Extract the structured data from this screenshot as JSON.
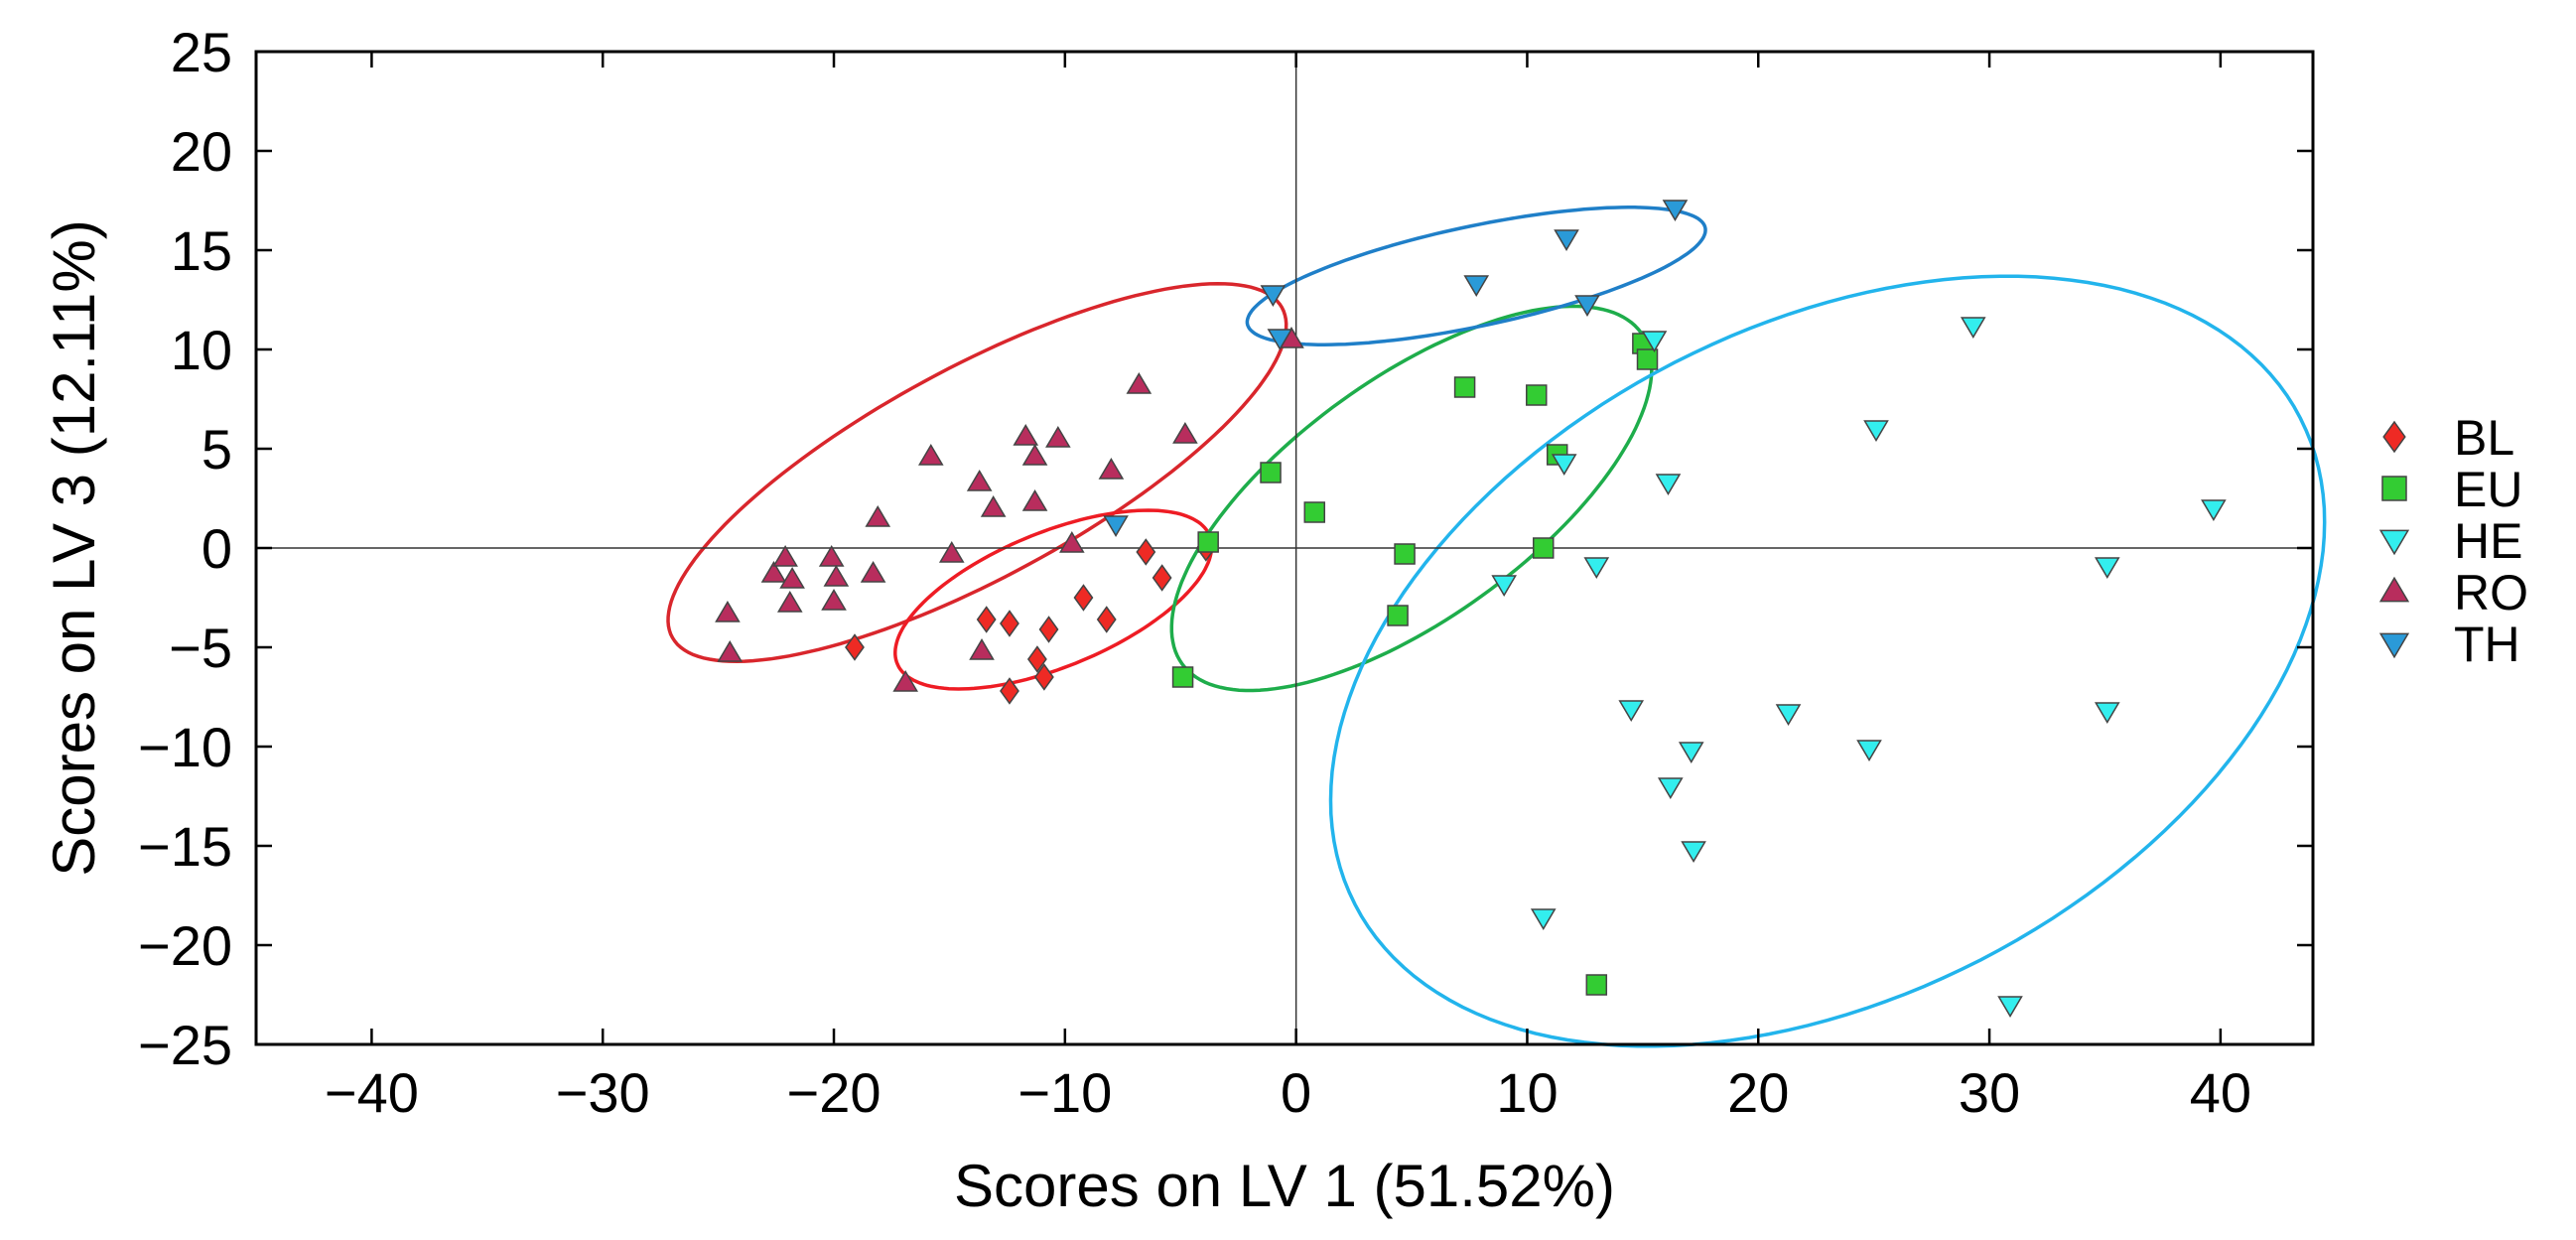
{
  "chart_data": {
    "type": "scatter",
    "xlabel": "Scores on LV 1 (51.52%)",
    "ylabel": "Scores on LV 3 (12.11%)",
    "xlim": [
      -45,
      44
    ],
    "ylim": [
      -25,
      25
    ],
    "xticks": [
      -40,
      -30,
      -20,
      -10,
      0,
      10,
      20,
      30,
      40
    ],
    "yticks": [
      25,
      20,
      15,
      10,
      5,
      0,
      -5,
      -10,
      -15,
      -20,
      -25
    ],
    "xtick_labels": [
      "−40",
      "−30",
      "−20",
      "−10",
      "0",
      "10",
      "20",
      "30",
      "40"
    ],
    "ytick_labels": [
      "25",
      "20",
      "15",
      "10",
      "5",
      "0",
      "−5",
      "−10",
      "−15",
      "−20",
      "−25"
    ],
    "grid": false,
    "zero_lines": true,
    "legend_position": "right",
    "series": [
      {
        "name": "BL",
        "marker": "diamond",
        "color": "#ee2a24",
        "points": [
          [
            -19.1,
            -5.0
          ],
          [
            -13.4,
            -3.6
          ],
          [
            -12.4,
            -3.8
          ],
          [
            -10.7,
            -4.1
          ],
          [
            -12.4,
            -7.2
          ],
          [
            -11.2,
            -5.6
          ],
          [
            -10.9,
            -6.5
          ],
          [
            -9.2,
            -2.5
          ],
          [
            -8.2,
            -3.6
          ],
          [
            -6.5,
            -0.2
          ],
          [
            -5.8,
            -1.5
          ],
          [
            -3.9,
            0.0
          ]
        ]
      },
      {
        "name": "EU",
        "marker": "square",
        "color": "#33cc33",
        "points": [
          [
            -4.9,
            -6.5
          ],
          [
            -3.8,
            0.3
          ],
          [
            -1.1,
            3.8
          ],
          [
            0.8,
            1.8
          ],
          [
            4.4,
            -3.4
          ],
          [
            4.7,
            -0.3
          ],
          [
            7.3,
            8.1
          ],
          [
            10.4,
            7.7
          ],
          [
            11.3,
            4.7
          ],
          [
            10.7,
            0.0
          ],
          [
            15.0,
            10.3
          ],
          [
            15.2,
            9.5
          ],
          [
            13.0,
            -22.0
          ]
        ]
      },
      {
        "name": "HE",
        "marker": "triangle-down",
        "color": "#33eeee",
        "points": [
          [
            9.0,
            -1.8
          ],
          [
            11.6,
            4.3
          ],
          [
            13.0,
            -0.9
          ],
          [
            14.5,
            -8.1
          ],
          [
            15.5,
            10.5
          ],
          [
            16.1,
            3.3
          ],
          [
            16.2,
            -12.0
          ],
          [
            17.1,
            -10.2
          ],
          [
            17.2,
            -15.2
          ],
          [
            21.3,
            -8.3
          ],
          [
            24.8,
            -10.1
          ],
          [
            25.1,
            6.0
          ],
          [
            29.3,
            11.2
          ],
          [
            30.9,
            -23.0
          ],
          [
            35.1,
            -0.9
          ],
          [
            35.1,
            -8.2
          ],
          [
            39.7,
            2.0
          ],
          [
            10.7,
            -18.6
          ]
        ]
      },
      {
        "name": "RO",
        "marker": "triangle-up",
        "color": "#b82d5d",
        "points": [
          [
            -24.6,
            -3.3
          ],
          [
            -24.5,
            -5.3
          ],
          [
            -22.6,
            -1.3
          ],
          [
            -22.1,
            -0.5
          ],
          [
            -21.8,
            -1.6
          ],
          [
            -21.9,
            -2.8
          ],
          [
            -20.1,
            -0.5
          ],
          [
            -19.9,
            -1.5
          ],
          [
            -20.0,
            -2.7
          ],
          [
            -18.3,
            -1.3
          ],
          [
            -18.1,
            1.5
          ],
          [
            -16.9,
            -6.8
          ],
          [
            -15.8,
            4.6
          ],
          [
            -14.9,
            -0.3
          ],
          [
            -13.7,
            3.3
          ],
          [
            -13.6,
            -5.2
          ],
          [
            -13.1,
            2.0
          ],
          [
            -11.7,
            5.6
          ],
          [
            -11.3,
            4.6
          ],
          [
            -11.3,
            2.3
          ],
          [
            -10.3,
            5.5
          ],
          [
            -9.7,
            0.2
          ],
          [
            -8.0,
            3.9
          ],
          [
            -6.8,
            8.2
          ],
          [
            -4.8,
            5.7
          ],
          [
            -0.2,
            10.5
          ]
        ]
      },
      {
        "name": "TH",
        "marker": "triangle-down",
        "color": "#2a9ad8",
        "points": [
          [
            -7.8,
            1.2
          ],
          [
            -1.0,
            12.8
          ],
          [
            -0.7,
            10.6
          ],
          [
            7.8,
            13.3
          ],
          [
            11.7,
            15.6
          ],
          [
            12.6,
            12.3
          ],
          [
            16.4,
            17.1
          ]
        ]
      }
    ],
    "ellipses": [
      {
        "group": "RO",
        "color": "#d9262c",
        "center": [
          -13.8,
          3.8
        ],
        "rx": 15.6,
        "ry": 5.1,
        "angle_deg": 33
      },
      {
        "group": "BL",
        "color": "#ee1c24",
        "center": [
          -10.5,
          -2.6
        ],
        "rx": 7.5,
        "ry": 3.3,
        "angle_deg": 27
      },
      {
        "group": "EU",
        "color": "#1ead4b",
        "center": [
          5.0,
          2.5
        ],
        "rx": 13.0,
        "ry": 5.7,
        "angle_deg": 42
      },
      {
        "group": "TH",
        "color": "#1f7fc8",
        "center": [
          7.8,
          13.7
        ],
        "rx": 10.2,
        "ry": 2.5,
        "angle_deg": 14
      },
      {
        "group": "HE",
        "color": "#22b4ec",
        "center": [
          23.0,
          -5.7
        ],
        "rx": 24.0,
        "ry": 16.2,
        "angle_deg": 37
      }
    ]
  }
}
